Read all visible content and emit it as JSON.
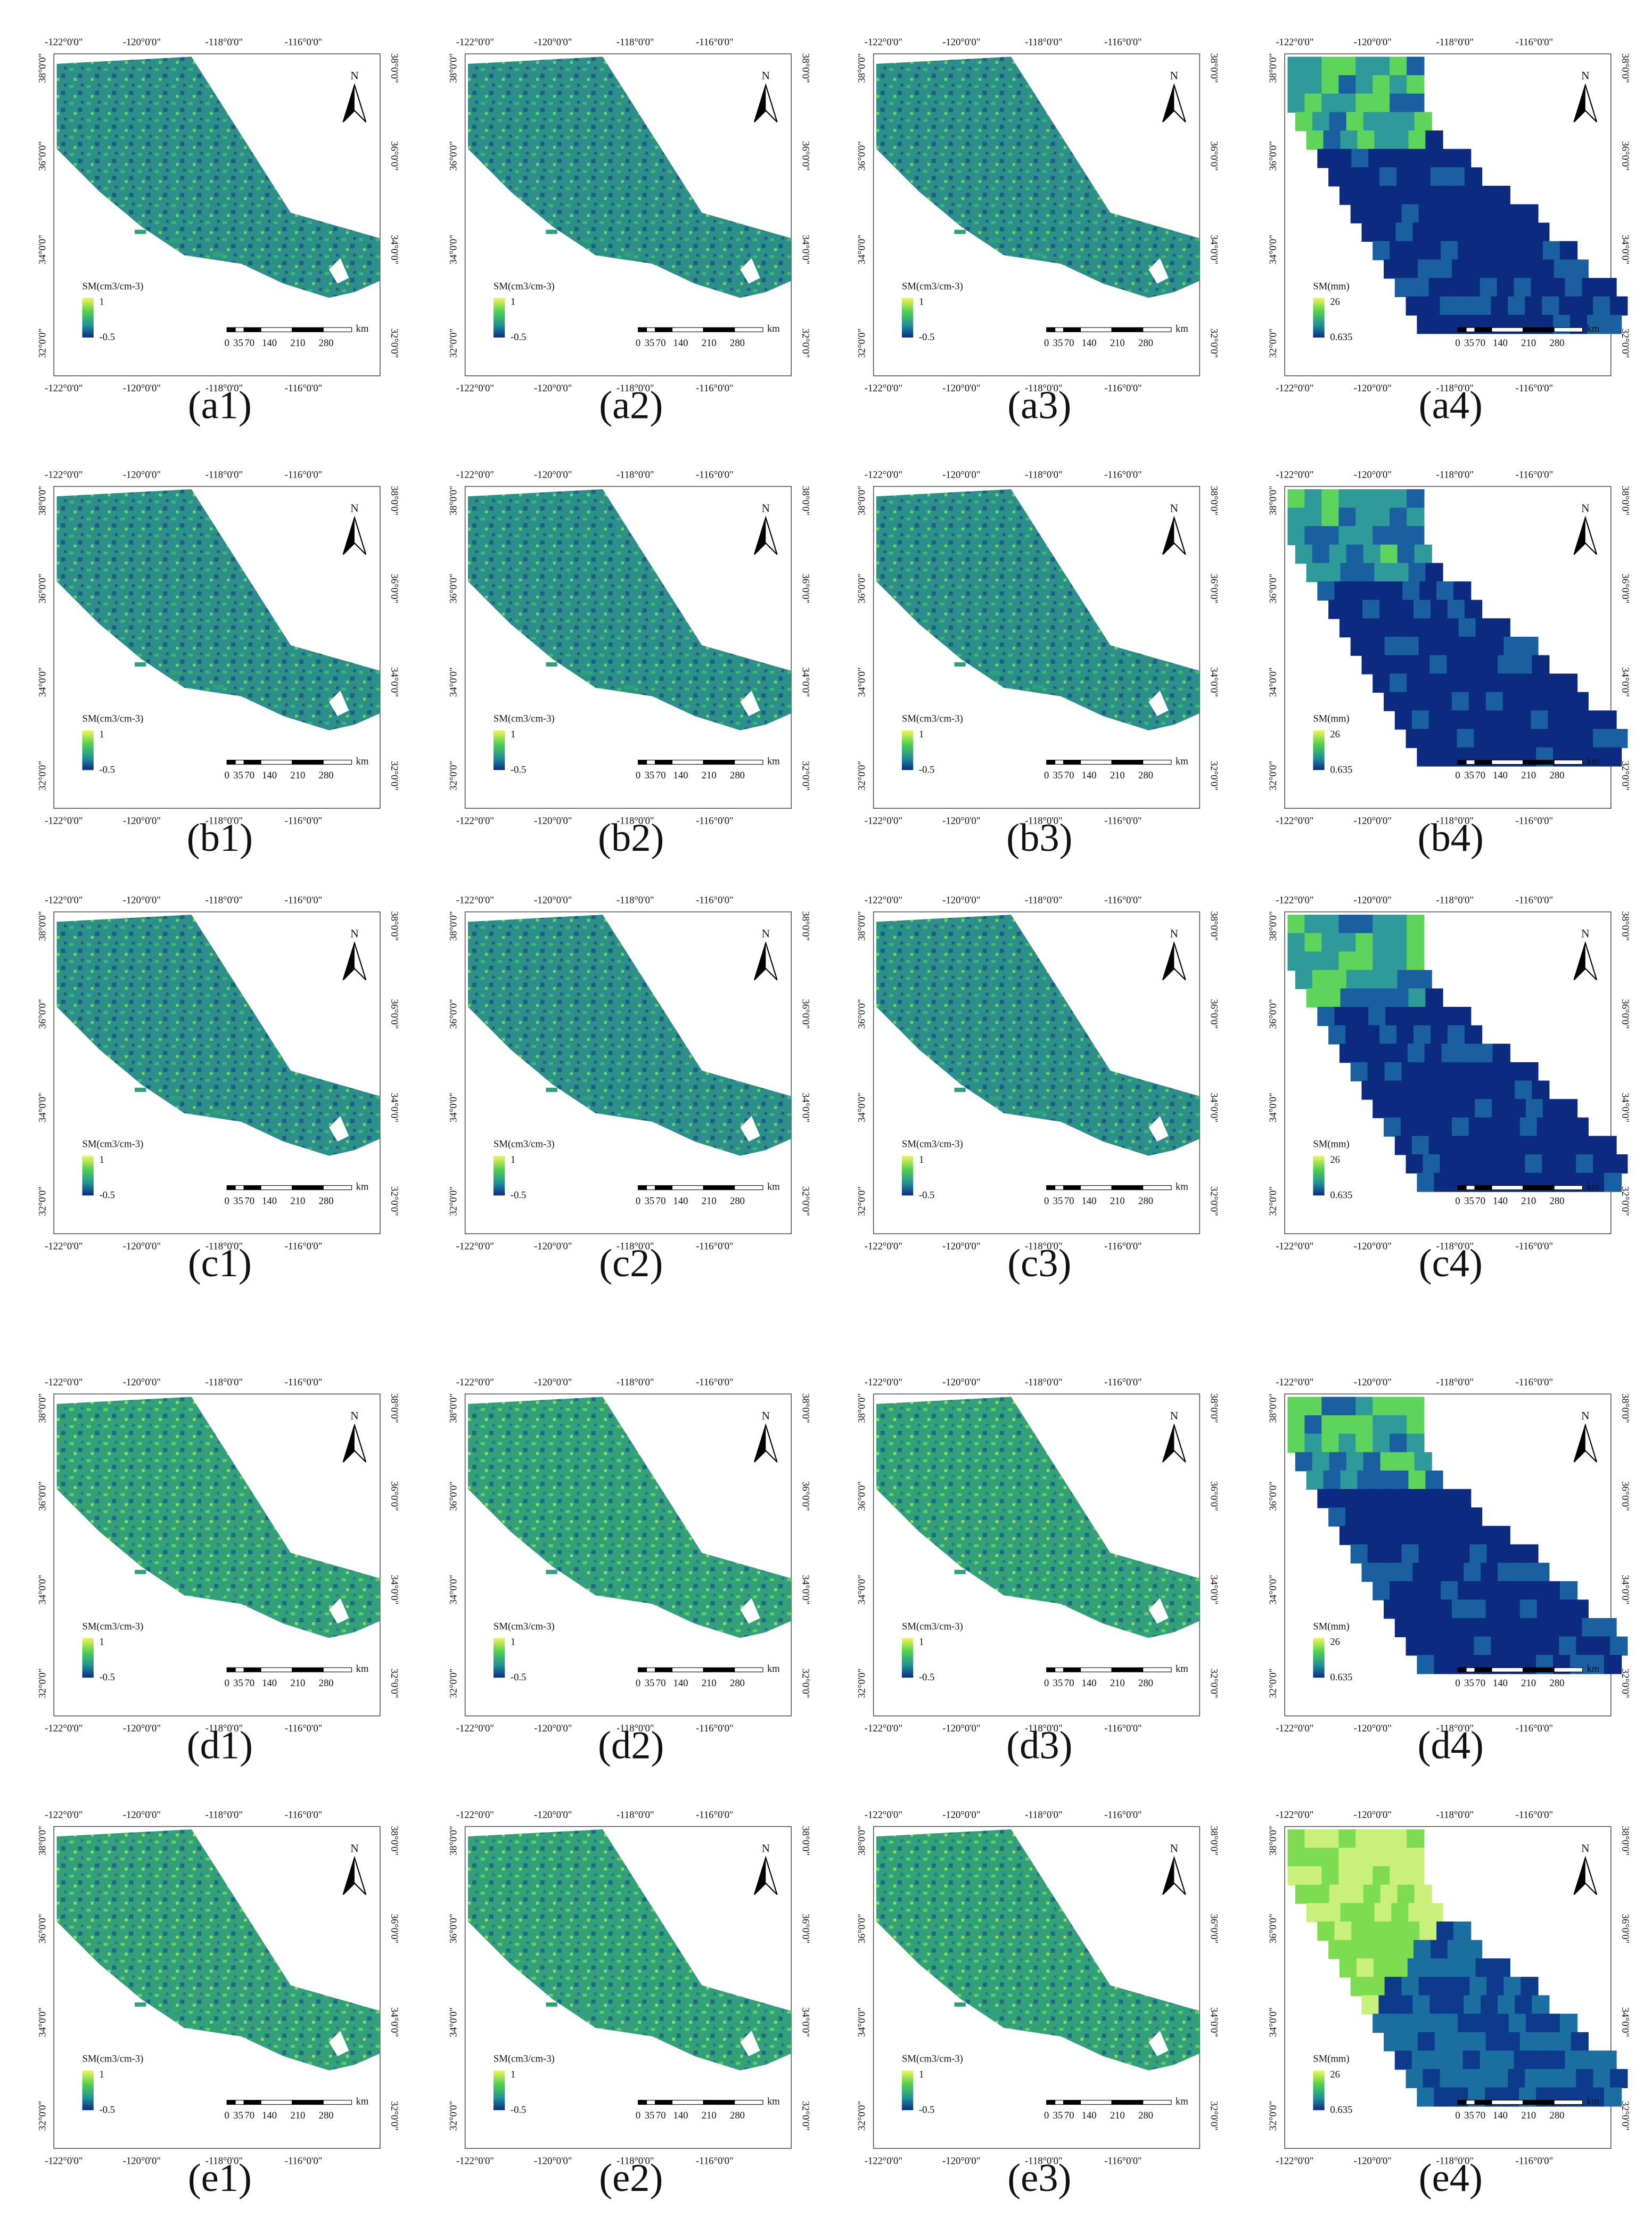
{
  "lon_labels": [
    "-122°0'0\"",
    "-120°0'0\"",
    "-118°0'0\"",
    "-116°0'0\""
  ],
  "lat_labels": [
    "38°0'0\"",
    "36°0'0\"",
    "34°0'0\"",
    "32°0'0\""
  ],
  "north": "N",
  "scale_labels": [
    "0",
    "35",
    "70",
    "140",
    "210",
    "280"
  ],
  "scale_unit": "km",
  "panels": [
    {
      "label": "(a1)",
      "legend_title": "SM(cm3/cm-3)",
      "legend_max": 1,
      "legend_min": -0.5
    },
    {
      "label": "(a2)",
      "legend_title": "SM(cm3/cm-3)",
      "legend_max": 1,
      "legend_min": -0.5
    },
    {
      "label": "(a3)",
      "legend_title": "SM(cm3/cm-3)",
      "legend_max": 1,
      "legend_min": -0.5
    },
    {
      "label": "(a4)",
      "legend_title": "SM(mm)",
      "legend_max": 26,
      "legend_min": 0.635
    },
    {
      "label": "(b1)",
      "legend_title": "SM(cm3/cm-3)",
      "legend_max": 1,
      "legend_min": -0.5
    },
    {
      "label": "(b2)",
      "legend_title": "SM(cm3/cm-3)",
      "legend_max": 1,
      "legend_min": -0.5
    },
    {
      "label": "(b3)",
      "legend_title": "SM(cm3/cm-3)",
      "legend_max": 1,
      "legend_min": -0.5
    },
    {
      "label": "(b4)",
      "legend_title": "SM(mm)",
      "legend_max": 26,
      "legend_min": 0.635
    },
    {
      "label": "(c1)",
      "legend_title": "SM(cm3/cm-3)",
      "legend_max": 1,
      "legend_min": -0.5
    },
    {
      "label": "(c2)",
      "legend_title": "SM(cm3/cm-3)",
      "legend_max": 1,
      "legend_min": -0.5
    },
    {
      "label": "(c3)",
      "legend_title": "SM(cm3/cm-3)",
      "legend_max": 1,
      "legend_min": -0.5
    },
    {
      "label": "(c4)",
      "legend_title": "SM(mm)",
      "legend_max": 26,
      "legend_min": 0.635
    },
    {
      "label": "(d1)",
      "legend_title": "SM(cm3/cm-3)",
      "legend_max": 1,
      "legend_min": -0.5
    },
    {
      "label": "(d2)",
      "legend_title": "SM(cm3/cm-3)",
      "legend_max": 1,
      "legend_min": -0.5
    },
    {
      "label": "(d3)",
      "legend_title": "SM(cm3/cm-3)",
      "legend_max": 1,
      "legend_min": -0.5
    },
    {
      "label": "(d4)",
      "legend_title": "SM(mm)",
      "legend_max": 26,
      "legend_min": 0.635
    },
    {
      "label": "(e1)",
      "legend_title": "SM(cm3/cm-3)",
      "legend_max": 1,
      "legend_min": -0.5
    },
    {
      "label": "(e2)",
      "legend_title": "SM(cm3/cm-3)",
      "legend_max": 1,
      "legend_min": -0.5
    },
    {
      "label": "(e3)",
      "legend_title": "SM(cm3/cm-3)",
      "legend_max": 1,
      "legend_min": -0.5
    },
    {
      "label": "(e4)",
      "legend_title": "SM(mm)",
      "legend_max": 26,
      "legend_min": 0.635
    }
  ]
}
